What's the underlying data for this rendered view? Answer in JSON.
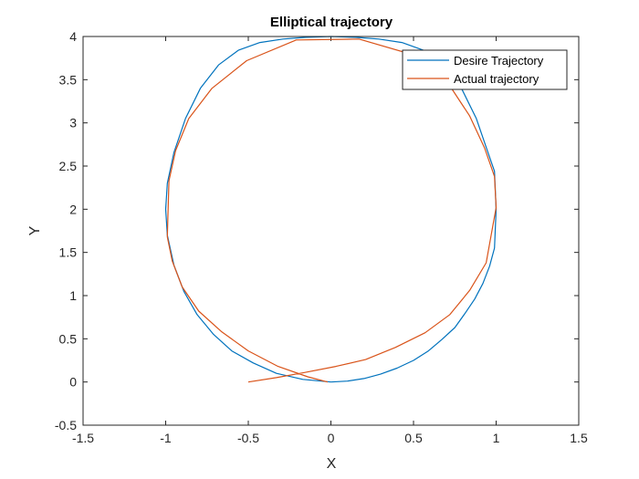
{
  "chart_data": {
    "type": "line",
    "title": "Elliptical trajectory",
    "xlabel": "X",
    "ylabel": "Y",
    "xlim": [
      -1.5,
      1.5
    ],
    "ylim": [
      -0.5,
      4
    ],
    "xticks": [
      "-1.5",
      "-1",
      "-0.5",
      "0",
      "0.5",
      "1",
      "1.5"
    ],
    "yticks": [
      "-0.5",
      "0",
      "0.5",
      "1",
      "1.5",
      "2",
      "2.5",
      "3",
      "3.5",
      "4"
    ],
    "grid": false,
    "legend_position": "top-right",
    "series": [
      {
        "name": "Desire Trajectory",
        "color": "#0072BD",
        "x": [
          0.0,
          0.1,
          0.2,
          0.3,
          0.4,
          0.5,
          0.59,
          0.67,
          0.75,
          0.81,
          0.87,
          0.92,
          0.96,
          0.99,
          1.0,
          0.99,
          0.95,
          0.88,
          0.79,
          0.68,
          0.56,
          0.43,
          0.29,
          0.15,
          0.0,
          -0.15,
          -0.29,
          -0.43,
          -0.56,
          -0.68,
          -0.79,
          -0.88,
          -0.95,
          -0.99,
          -1.0,
          -0.99,
          -0.95,
          -0.89,
          -0.81,
          -0.71,
          -0.6,
          -0.47,
          -0.33,
          -0.17,
          0.0
        ],
        "y": [
          0.0,
          0.01,
          0.04,
          0.09,
          0.16,
          0.25,
          0.36,
          0.49,
          0.63,
          0.79,
          0.96,
          1.14,
          1.34,
          1.55,
          2.0,
          2.44,
          2.66,
          3.05,
          3.4,
          3.67,
          3.84,
          3.93,
          3.97,
          3.99,
          4.0,
          3.99,
          3.97,
          3.93,
          3.84,
          3.67,
          3.4,
          3.05,
          2.66,
          2.3,
          2.0,
          1.7,
          1.35,
          1.05,
          0.78,
          0.55,
          0.36,
          0.22,
          0.1,
          0.03,
          0.0
        ]
      },
      {
        "name": "Actual trajectory",
        "color": "#D95319",
        "x": [
          -0.5,
          -0.33,
          -0.16,
          0.03,
          0.21,
          0.39,
          0.57,
          0.72,
          0.84,
          0.94,
          1.0,
          0.99,
          0.93,
          0.84,
          0.62,
          0.17,
          -0.21,
          -0.51,
          -0.72,
          -0.86,
          -0.94,
          -0.98,
          -0.99,
          -0.96,
          -0.9,
          -0.8,
          -0.66,
          -0.5,
          -0.32,
          -0.14,
          -0.02
        ],
        "y": [
          0.0,
          0.05,
          0.11,
          0.18,
          0.26,
          0.4,
          0.57,
          0.78,
          1.06,
          1.38,
          2.02,
          2.38,
          2.71,
          3.08,
          3.72,
          3.97,
          3.96,
          3.72,
          3.4,
          3.05,
          2.68,
          2.33,
          1.68,
          1.4,
          1.1,
          0.82,
          0.58,
          0.36,
          0.18,
          0.06,
          0.0
        ]
      }
    ]
  }
}
